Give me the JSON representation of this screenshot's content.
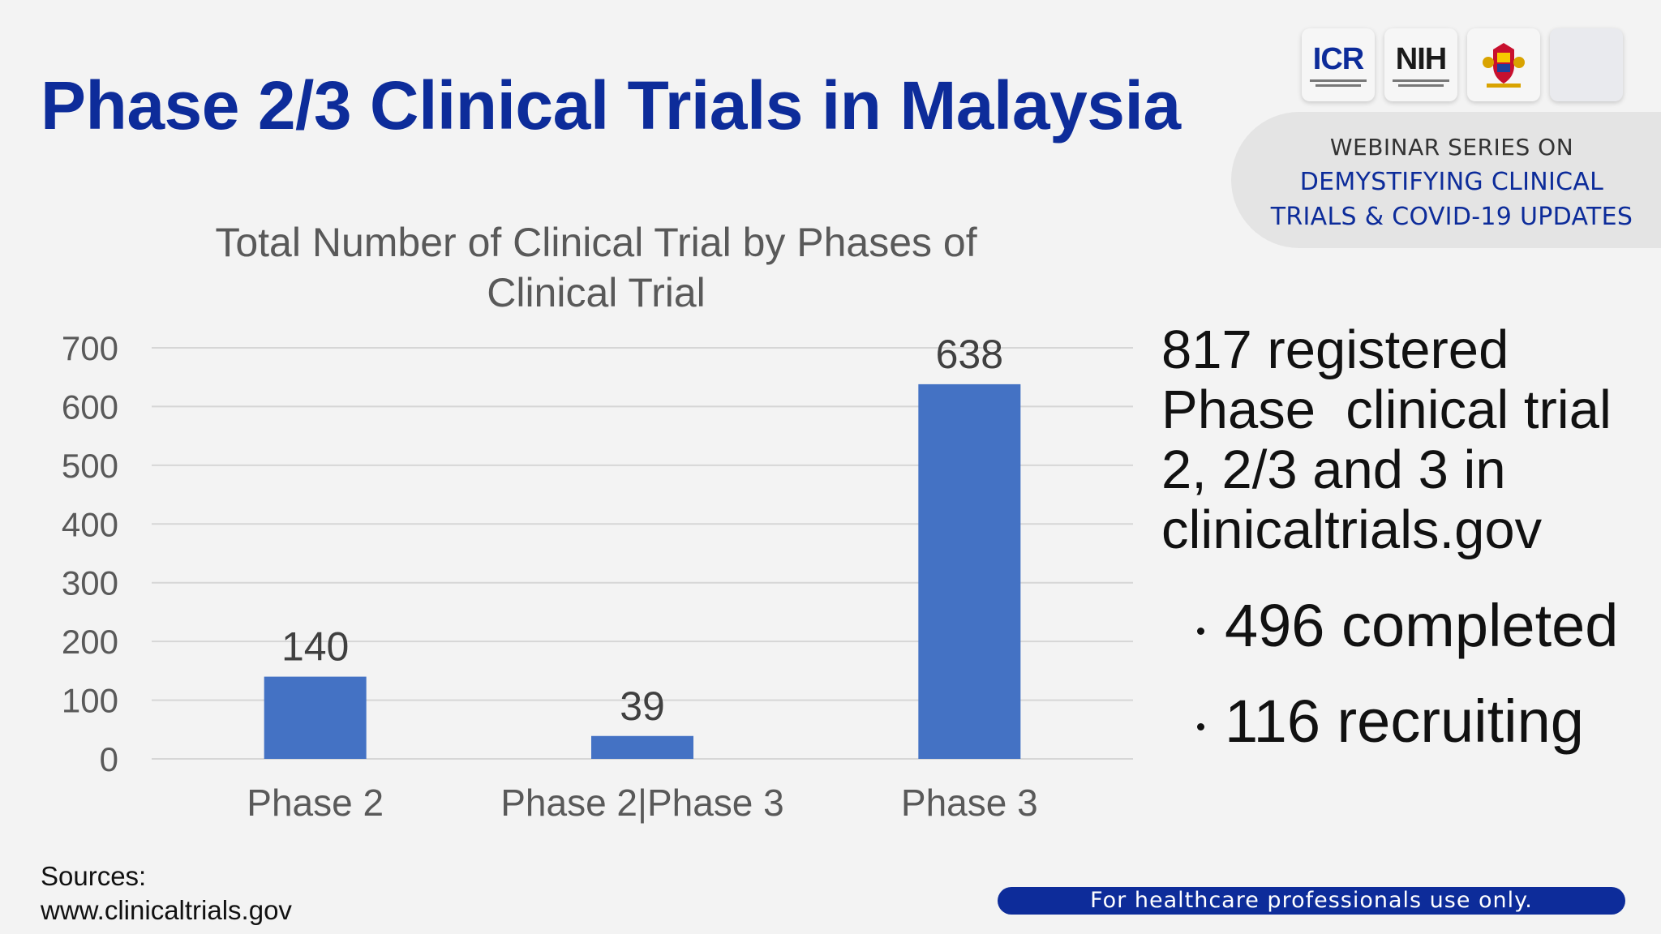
{
  "slide": {
    "title": "Phase 2/3 Clinical Trials in Malaysia"
  },
  "logos": [
    {
      "name": "icr-logo",
      "text": "ICR"
    },
    {
      "name": "nih-logo",
      "text": "NIH"
    },
    {
      "name": "moh-crest-logo",
      "text": ""
    },
    {
      "name": "blank-logo",
      "text": ""
    }
  ],
  "webinar": {
    "line1": "WEBINAR SERIES ON",
    "line2": "DEMYSTIFYING CLINICAL",
    "line3": "TRIALS & COVID-19 UPDATES"
  },
  "chart_data": {
    "type": "bar",
    "title": "Total Number of Clinical Trial by Phases of",
    "title_line2": "Clinical Trial",
    "categories": [
      "Phase 2",
      "Phase 2|Phase 3",
      "Phase 3"
    ],
    "values": [
      140,
      39,
      638
    ],
    "ylim": [
      0,
      700
    ],
    "yticks": [
      0,
      100,
      200,
      300,
      400,
      500,
      600,
      700
    ],
    "grid": true,
    "bar_color": "#4472c4",
    "data_labels": true
  },
  "stats": {
    "headline": "817 registered\nPhase  clinical trial\n2, 2/3 and 3 in\nclinicaltrials.gov",
    "bullets": [
      "496 completed",
      "116 recruiting"
    ]
  },
  "sources": {
    "label": "Sources:",
    "url": "www.clinicaltrials.gov"
  },
  "footer": {
    "disclaimer": "For healthcare professionals use only."
  },
  "colors": {
    "title_blue": "#0d2c9a",
    "bar_blue": "#4472c4",
    "background": "#f3f3f3"
  }
}
